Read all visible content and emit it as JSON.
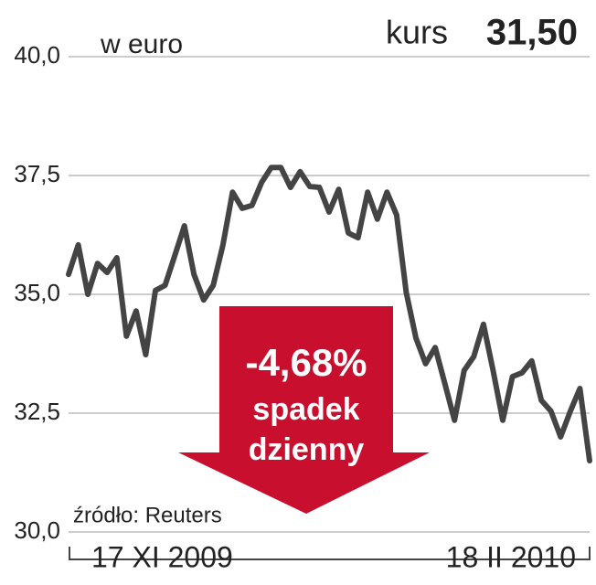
{
  "chart_data": {
    "type": "line",
    "title": "kurs",
    "current_value": "31,50",
    "ylabel": "w euro",
    "annotations": [
      "-4,68%",
      "spadek",
      "dzienny"
    ],
    "source": "źródło: Reuters",
    "categories": [
      "17 XI 2009",
      null,
      null,
      null,
      null,
      null,
      null,
      null,
      null,
      null,
      null,
      null,
      null,
      null,
      null,
      null,
      null,
      null,
      null,
      null,
      null,
      null,
      null,
      null,
      null,
      null,
      null,
      null,
      null,
      null,
      null,
      null,
      null,
      null,
      null,
      null,
      null,
      null,
      null,
      null,
      null,
      null,
      null,
      null,
      null,
      null,
      null,
      null,
      null,
      null,
      null,
      null,
      null,
      null,
      "18 II 2010"
    ],
    "series": [
      {
        "name": "kurs",
        "color": "#444444",
        "values": [
          35.42,
          36.04,
          35.0,
          35.65,
          35.46,
          35.77,
          34.12,
          34.65,
          33.73,
          35.08,
          35.19,
          35.81,
          36.44,
          35.42,
          34.88,
          35.19,
          36.04,
          37.15,
          36.81,
          36.87,
          37.35,
          37.67,
          37.67,
          37.25,
          37.58,
          37.27,
          37.25,
          36.73,
          37.21,
          36.29,
          36.19,
          37.15,
          36.58,
          37.15,
          36.67,
          35.04,
          34.08,
          33.54,
          33.88,
          33.12,
          32.35,
          33.4,
          33.69,
          34.37,
          33.4,
          32.35,
          33.27,
          33.35,
          33.6,
          32.77,
          32.54,
          32.0,
          32.54,
          33.02,
          31.5
        ]
      }
    ],
    "ylim": [
      30,
      40
    ],
    "yticks": [
      {
        "value": 30,
        "label": "30,0"
      },
      {
        "value": 32.5,
        "label": "32,5"
      },
      {
        "value": 35,
        "label": "35,0"
      },
      {
        "value": 37.5,
        "label": "37,5"
      },
      {
        "value": 40,
        "label": "40,0"
      }
    ],
    "grid": true
  }
}
